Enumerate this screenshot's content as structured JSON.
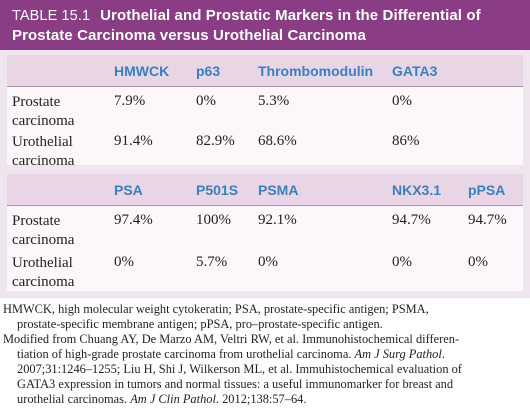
{
  "table": {
    "label": "TABLE 15.1",
    "title_line1": "Urothelial and Prostatic Markers in the Differential of",
    "title_line2": "Prostate Carcinoma versus Urothelial Carcinoma"
  },
  "panel1": {
    "headers": [
      "HMWCK",
      "p63",
      "Thrombomodulin",
      "GATA3"
    ],
    "rows": [
      {
        "label1": "Prostate",
        "label2": "carcinoma",
        "values": [
          "7.9%",
          "0%",
          "5.3%",
          "0%"
        ]
      },
      {
        "label1": "Urothelial",
        "label2": "carcinoma",
        "values": [
          "91.4%",
          "82.9%",
          "68.6%",
          "86%"
        ]
      }
    ]
  },
  "panel2": {
    "headers": [
      "PSA",
      "P501S",
      "PSMA",
      "NKX3.1",
      "pPSA"
    ],
    "rows": [
      {
        "label1": "Prostate",
        "label2": "carcinoma",
        "values": [
          "97.4%",
          "100%",
          "92.1%",
          "94.7%",
          "94.7%"
        ]
      },
      {
        "label1": "Urothelial",
        "label2": "carcinoma",
        "values": [
          "0%",
          "5.7%",
          "0%",
          "0%",
          "0%"
        ]
      }
    ]
  },
  "footnotes": {
    "line1": "HMWCK, high molecular weight cytokeratin; PSA, prostate-specific antigen; PSMA,",
    "line2": "prostate-specific membrane antigen; pPSA, pro–prostate-specific antigen.",
    "line3": "Modified from Chuang AY, De Marzo AM, Veltri RW, et al. Immunohistochemical differen-",
    "line4_a": "tiation of high-grade prostate carcinoma from urothelial carcinoma. ",
    "line4_b": "Am J Surg Pathol",
    "line4_c": ".",
    "line5": "2007;31:1246–1255; Liu H, Shi J, Wilkerson ML, et al. Immuhistochemical evaluation of",
    "line6": "GATA3 expression in tumors and normal tissues: a useful immunomarker for breast and",
    "line7_a": "urothelial carcinomas. ",
    "line7_b": "Am J Clin Pathol",
    "line7_c": ". 2012;138:57–64."
  }
}
